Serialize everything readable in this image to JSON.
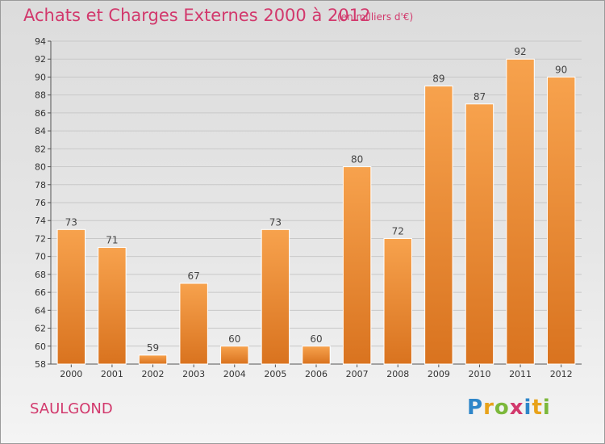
{
  "colors": {
    "accent": "#d2386c",
    "bar_light": "#f7a24d",
    "bar_dark": "#d9731f",
    "bar_edge": "#ffffff",
    "axis": "#555555",
    "grid": "#c8c8c8"
  },
  "commune": "SAULGOND",
  "brand": {
    "letters": [
      "P",
      "r",
      "o",
      "x",
      "i",
      "t",
      "i"
    ],
    "colors": [
      "#2e86c9",
      "#e8a21a",
      "#7cb83a",
      "#d2386c",
      "#2e86c9",
      "#e8a21a",
      "#7cb83a"
    ]
  },
  "chart_data": {
    "type": "bar",
    "title": "Achats et Charges Externes 2000 à 2012",
    "subtitle": "(en milliers d'€)",
    "xlabel": "",
    "ylabel": "",
    "categories": [
      "2000",
      "2001",
      "2002",
      "2003",
      "2004",
      "2005",
      "2006",
      "2007",
      "2008",
      "2009",
      "2010",
      "2011",
      "2012"
    ],
    "values": [
      73,
      71,
      59,
      67,
      60,
      73,
      60,
      80,
      72,
      89,
      87,
      92,
      90
    ],
    "ylim": [
      58,
      94
    ],
    "yticks": [
      58,
      60,
      62,
      64,
      66,
      68,
      70,
      72,
      74,
      76,
      78,
      80,
      82,
      84,
      86,
      88,
      90,
      92,
      94
    ],
    "grid": true,
    "legend": "none"
  }
}
